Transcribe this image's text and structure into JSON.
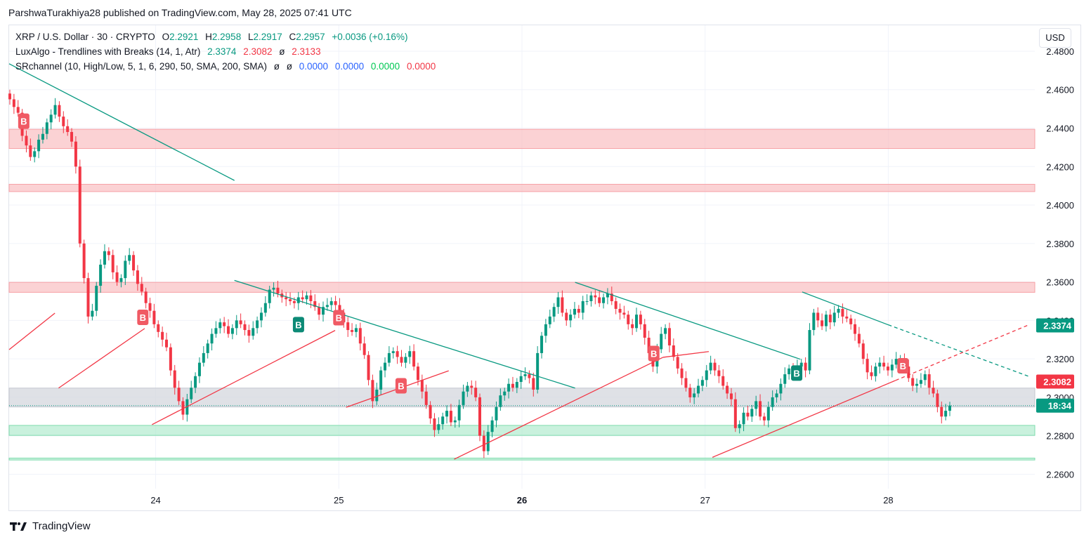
{
  "header": {
    "attribution": "ParshwaTurakhiya28 published on TradingView.com, May 28, 2025 07:41 UTC"
  },
  "legend": {
    "symbol": "XRP / U.S. Dollar · 30 · CRYPTO",
    "o_label": "O",
    "o_value": "2.2921",
    "h_label": "H",
    "h_value": "2.2958",
    "l_label": "L",
    "l_value": "2.2917",
    "c_label": "C",
    "c_value": "2.2957",
    "change": "+0.0036 (+0.16%)",
    "ind1_name": "LuxAlgo - Trendlines with Breaks (14, 1, Atr)",
    "ind1_v1": "2.3374",
    "ind1_v2": "2.3082",
    "ind1_sym": "ø",
    "ind1_v3": "2.3133",
    "ind2_name": "SRchannel (10, High/Low, 5, 1, 6, 290, 50, SMA, 200, SMA)",
    "ind2_sym1": "ø",
    "ind2_sym2": "ø",
    "ind2_v1": "0.0000",
    "ind2_v2": "0.0000",
    "ind2_v3": "0.0000",
    "ind2_v4": "0.0000"
  },
  "currency_button": "USD",
  "footer": {
    "brand": "TradingView"
  },
  "colors": {
    "up": "#089981",
    "down": "#f23645",
    "resistance_zone": "#f8b4b8",
    "support_zone": "#a5e8c6",
    "mid_zone": "#d1d4dc"
  },
  "chart_data": {
    "type": "candlestick",
    "title": "XRP / U.S. Dollar · 30 · CRYPTO",
    "ylim": [
      2.2525,
      2.4935
    ],
    "y_ticks": [
      "2.4800",
      "2.4600",
      "2.4400",
      "2.4200",
      "2.4000",
      "2.3800",
      "2.3600",
      "2.3400",
      "2.3200",
      "2.3000",
      "2.2800",
      "2.2600"
    ],
    "x_ticks": [
      "24",
      "25",
      "26",
      "27",
      "28"
    ],
    "x_range_days": [
      23.2,
      28.8
    ],
    "price_labels": [
      {
        "value": 2.3374,
        "text": "2.3374",
        "color": "#089981"
      },
      {
        "value": 2.3082,
        "text": "2.3082",
        "color": "#f23645"
      },
      {
        "value": 2.2957,
        "text": "18:34",
        "color": "#089981"
      }
    ],
    "zones": [
      {
        "from": 2.4294,
        "to": 2.4394,
        "kind": "resistance"
      },
      {
        "from": 2.407,
        "to": 2.4108,
        "kind": "resistance"
      },
      {
        "from": 2.3546,
        "to": 2.3598,
        "kind": "resistance"
      },
      {
        "from": 2.295,
        "to": 2.3048,
        "kind": "mid"
      },
      {
        "from": 2.2802,
        "to": 2.2854,
        "kind": "support"
      },
      {
        "from": 2.2674,
        "to": 2.2684,
        "kind": "support"
      }
    ],
    "trendlines": [
      {
        "x1": 23.2,
        "y1": 2.4735,
        "x2": 24.43,
        "y2": 2.4128,
        "color": "#089981",
        "dashed": false
      },
      {
        "x1": 24.43,
        "y1": 2.3608,
        "x2": 26.29,
        "y2": 2.3048,
        "color": "#089981",
        "dashed": false
      },
      {
        "x1": 26.29,
        "y1": 2.3598,
        "x2": 27.52,
        "y2": 2.3198,
        "color": "#089981",
        "dashed": false
      },
      {
        "x1": 27.53,
        "y1": 2.3548,
        "x2": 28.0,
        "y2": 2.3377,
        "color": "#089981",
        "dashed": false
      },
      {
        "x1": 28.0,
        "y1": 2.3377,
        "x2": 28.77,
        "y2": 2.3108,
        "color": "#089981",
        "dashed": true
      },
      {
        "x1": 23.2,
        "y1": 2.3248,
        "x2": 23.45,
        "y2": 2.3438,
        "color": "#f23645",
        "dashed": false
      },
      {
        "x1": 23.47,
        "y1": 2.3048,
        "x2": 23.94,
        "y2": 2.3358,
        "color": "#f23645",
        "dashed": false
      },
      {
        "x1": 23.98,
        "y1": 2.2858,
        "x2": 24.98,
        "y2": 2.3348,
        "color": "#f23645",
        "dashed": false
      },
      {
        "x1": 25.04,
        "y1": 2.2948,
        "x2": 25.6,
        "y2": 2.3138,
        "color": "#f23645",
        "dashed": false
      },
      {
        "x1": 25.63,
        "y1": 2.2678,
        "x2": 26.77,
        "y2": 2.3208,
        "color": "#f23645",
        "dashed": false
      },
      {
        "x1": 26.77,
        "y1": 2.3208,
        "x2": 27.02,
        "y2": 2.3238,
        "color": "#f23645",
        "dashed": false
      },
      {
        "x1": 27.04,
        "y1": 2.2688,
        "x2": 28.04,
        "y2": 2.3088,
        "color": "#f23645",
        "dashed": false
      },
      {
        "x1": 28.04,
        "y1": 2.3088,
        "x2": 28.77,
        "y2": 2.3378,
        "color": "#f23645",
        "dashed": true
      }
    ],
    "markers": [
      {
        "x": 23.28,
        "y": 2.4436,
        "label": "B",
        "kind": "sell"
      },
      {
        "x": 23.93,
        "y": 2.3416,
        "label": "B",
        "kind": "sell"
      },
      {
        "x": 24.78,
        "y": 2.3378,
        "label": "B",
        "kind": "buy"
      },
      {
        "x": 25.0,
        "y": 2.3414,
        "label": "B",
        "kind": "sell"
      },
      {
        "x": 25.34,
        "y": 2.306,
        "label": "B",
        "kind": "sell"
      },
      {
        "x": 26.72,
        "y": 2.3228,
        "label": "B",
        "kind": "sell"
      },
      {
        "x": 27.5,
        "y": 2.3126,
        "label": "B",
        "kind": "buy"
      },
      {
        "x": 28.08,
        "y": 2.3164,
        "label": "B",
        "kind": "sell"
      }
    ],
    "candles_close": [
      2.455,
      2.451,
      2.448,
      2.436,
      2.431,
      2.425,
      2.428,
      2.434,
      2.437,
      2.443,
      2.447,
      2.452,
      2.446,
      2.441,
      2.438,
      2.433,
      2.42,
      2.38,
      2.362,
      2.342,
      2.345,
      2.358,
      2.369,
      2.376,
      2.374,
      2.365,
      2.36,
      2.362,
      2.371,
      2.374,
      2.366,
      2.359,
      2.355,
      2.349,
      2.345,
      2.338,
      2.334,
      2.33,
      2.326,
      2.314,
      2.305,
      2.298,
      2.291,
      2.299,
      2.305,
      2.311,
      2.318,
      2.323,
      2.328,
      2.333,
      2.336,
      2.339,
      2.337,
      2.333,
      2.336,
      2.34,
      2.338,
      2.335,
      2.332,
      2.336,
      2.34,
      2.344,
      2.349,
      2.356,
      2.357,
      2.354,
      2.352,
      2.351,
      2.35,
      2.349,
      2.352,
      2.351,
      2.353,
      2.35,
      2.347,
      2.343,
      2.347,
      2.348,
      2.35,
      2.348,
      2.344,
      2.339,
      2.335,
      2.334,
      2.336,
      2.328,
      2.322,
      2.309,
      2.298,
      2.304,
      2.314,
      2.318,
      2.323,
      2.324,
      2.321,
      2.318,
      2.321,
      2.324,
      2.316,
      2.309,
      2.303,
      2.296,
      2.289,
      2.283,
      2.286,
      2.29,
      2.293,
      2.287,
      2.288,
      2.296,
      2.303,
      2.306,
      2.305,
      2.3,
      2.28,
      2.272,
      2.282,
      2.288,
      2.295,
      2.301,
      2.303,
      2.307,
      2.305,
      2.308,
      2.311,
      2.312,
      2.31,
      2.304,
      2.323,
      2.332,
      2.338,
      2.342,
      2.347,
      2.352,
      2.344,
      2.34,
      2.343,
      2.346,
      2.344,
      2.35,
      2.35,
      2.353,
      2.352,
      2.349,
      2.352,
      2.354,
      2.35,
      2.346,
      2.344,
      2.343,
      2.338,
      2.336,
      2.343,
      2.338,
      2.331,
      2.323,
      2.316,
      2.325,
      2.333,
      2.336,
      2.327,
      2.321,
      2.315,
      2.31,
      2.305,
      2.3,
      2.302,
      2.306,
      2.309,
      2.314,
      2.318,
      2.314,
      2.311,
      2.306,
      2.302,
      2.299,
      2.284,
      2.286,
      2.292,
      2.29,
      2.294,
      2.298,
      2.29,
      2.288,
      2.295,
      2.3,
      2.302,
      2.307,
      2.312,
      2.315,
      2.314,
      2.316,
      2.318,
      2.314,
      2.335,
      2.344,
      2.34,
      2.337,
      2.343,
      2.339,
      2.344,
      2.346,
      2.342,
      2.341,
      2.338,
      2.333,
      2.328,
      2.32,
      2.313,
      2.311,
      2.316,
      2.318,
      2.316,
      2.314,
      2.317,
      2.32,
      2.32,
      2.316,
      2.31,
      2.306,
      2.307,
      2.309,
      2.312,
      2.305,
      2.302,
      2.295,
      2.29,
      2.293,
      2.2957
    ]
  }
}
